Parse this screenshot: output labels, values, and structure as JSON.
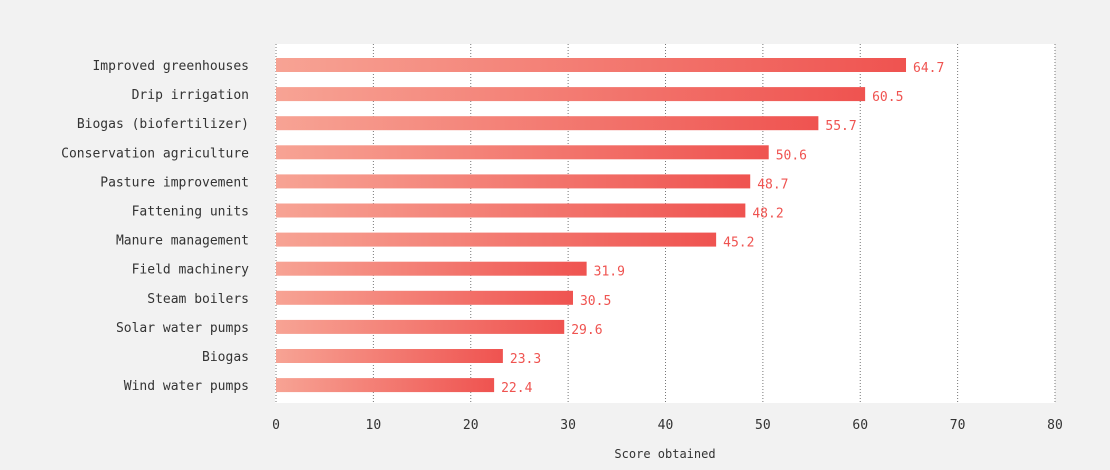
{
  "chart_data": {
    "type": "bar",
    "orientation": "horizontal",
    "categories": [
      "Improved greenhouses",
      "Drip irrigation",
      "Biogas (biofertilizer)",
      "Conservation agriculture",
      "Pasture improvement",
      "Fattening units",
      "Manure management",
      "Field machinery",
      "Steam boilers",
      "Solar water pumps",
      "Biogas",
      "Wind water pumps"
    ],
    "values": [
      64.7,
      60.5,
      55.7,
      50.6,
      48.7,
      48.2,
      45.2,
      31.9,
      30.5,
      29.6,
      23.3,
      22.4
    ],
    "value_labels": [
      "64.7",
      "60.5",
      "55.7",
      "50.6",
      "48.7",
      "48.2",
      "45.2",
      "31.9",
      "30.5",
      "29.6",
      "23.3",
      "22.4"
    ],
    "xlabel": "Score obtained",
    "ylabel": "",
    "xlim": [
      0,
      80
    ],
    "x_ticks": [
      "0",
      "10",
      "20",
      "30",
      "40",
      "50",
      "60",
      "70",
      "80"
    ],
    "grid": "vertical dotted",
    "colors": {
      "bar_start": "#f7a394",
      "bar_end": "#ef5350",
      "value_text": "#ef5350",
      "plot_background": "#ffffff",
      "page_background": "#f2f2f2"
    }
  }
}
